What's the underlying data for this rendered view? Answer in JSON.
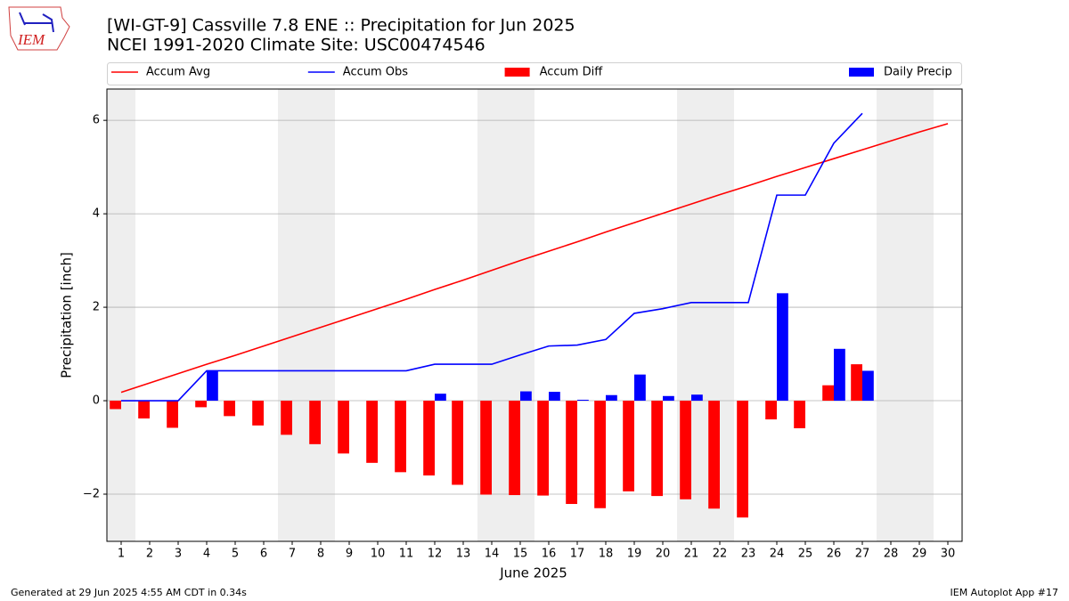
{
  "chart_data": {
    "type": "combo",
    "title": "[WI-GT-9] Cassville 7.8 ENE :: Precipitation for Jun 2025",
    "subtitle": "NCEI 1991-2020 Climate Site: USC00474546",
    "logo_text": "IEM",
    "xlabel": "June 2025",
    "ylabel": "Precipitation [inch]",
    "footer_left": "Generated at 29 Jun 2025 4:55 AM CDT in 0.34s",
    "footer_right": "IEM Autoplot App #17",
    "x": [
      1,
      2,
      3,
      4,
      5,
      6,
      7,
      8,
      9,
      10,
      11,
      12,
      13,
      14,
      15,
      16,
      17,
      18,
      19,
      20,
      21,
      22,
      23,
      24,
      25,
      26,
      27,
      28,
      29,
      30
    ],
    "xlim": [
      0.5,
      30.5
    ],
    "xticks": [
      1,
      2,
      3,
      4,
      5,
      6,
      7,
      8,
      9,
      10,
      11,
      12,
      13,
      14,
      15,
      16,
      17,
      18,
      19,
      20,
      21,
      22,
      23,
      24,
      25,
      26,
      27,
      28,
      29,
      30
    ],
    "ylim": [
      -3.01,
      6.67
    ],
    "yticks": [
      {
        "value": -2,
        "label": "−2"
      },
      0,
      2,
      4,
      6
    ],
    "grid": true,
    "shaded_spans": [
      [
        0.5,
        1.5
      ],
      [
        6.5,
        8.5
      ],
      [
        13.5,
        15.5
      ],
      [
        20.5,
        22.5
      ],
      [
        27.5,
        29.5
      ]
    ],
    "shade_color": "#eeeeee",
    "series": [
      {
        "name": "Accum Avg",
        "type": "line",
        "color": "#ff0000",
        "values": [
          0.18,
          0.38,
          0.58,
          0.78,
          0.97,
          1.17,
          1.37,
          1.57,
          1.77,
          1.97,
          2.17,
          2.38,
          2.58,
          2.79,
          3.0,
          3.2,
          3.4,
          3.61,
          3.81,
          4.01,
          4.21,
          4.41,
          4.6,
          4.8,
          4.99,
          5.18,
          5.37,
          5.56,
          5.75,
          5.93
        ]
      },
      {
        "name": "Accum Obs",
        "type": "line",
        "color": "#0000ff",
        "values": [
          0,
          0,
          0,
          0.64,
          0.64,
          0.64,
          0.64,
          0.64,
          0.64,
          0.64,
          0.64,
          0.78,
          0.78,
          0.78,
          0.98,
          1.17,
          1.19,
          1.31,
          1.87,
          1.97,
          2.1,
          2.1,
          2.1,
          4.4,
          4.4,
          5.51,
          6.15,
          null,
          null,
          null
        ]
      },
      {
        "name": "Accum Diff",
        "type": "bar",
        "color": "#ff0000",
        "values": [
          -0.18,
          -0.38,
          -0.58,
          -0.14,
          -0.33,
          -0.53,
          -0.73,
          -0.93,
          -1.13,
          -1.33,
          -1.53,
          -1.6,
          -1.8,
          -2.01,
          -2.02,
          -2.03,
          -2.21,
          -2.3,
          -1.94,
          -2.04,
          -2.11,
          -2.31,
          -2.5,
          -0.4,
          -0.59,
          0.33,
          0.78,
          null,
          null,
          null
        ]
      },
      {
        "name": "Daily Precip",
        "type": "bar",
        "color": "#0000ff",
        "values": [
          0,
          0,
          0,
          0.64,
          0,
          0,
          0,
          0,
          0,
          0,
          0,
          0.15,
          0,
          0,
          0.2,
          0.19,
          0.02,
          0.12,
          0.56,
          0.1,
          0.13,
          0,
          0,
          2.3,
          0,
          1.11,
          0.64,
          null,
          null,
          null
        ]
      }
    ]
  }
}
